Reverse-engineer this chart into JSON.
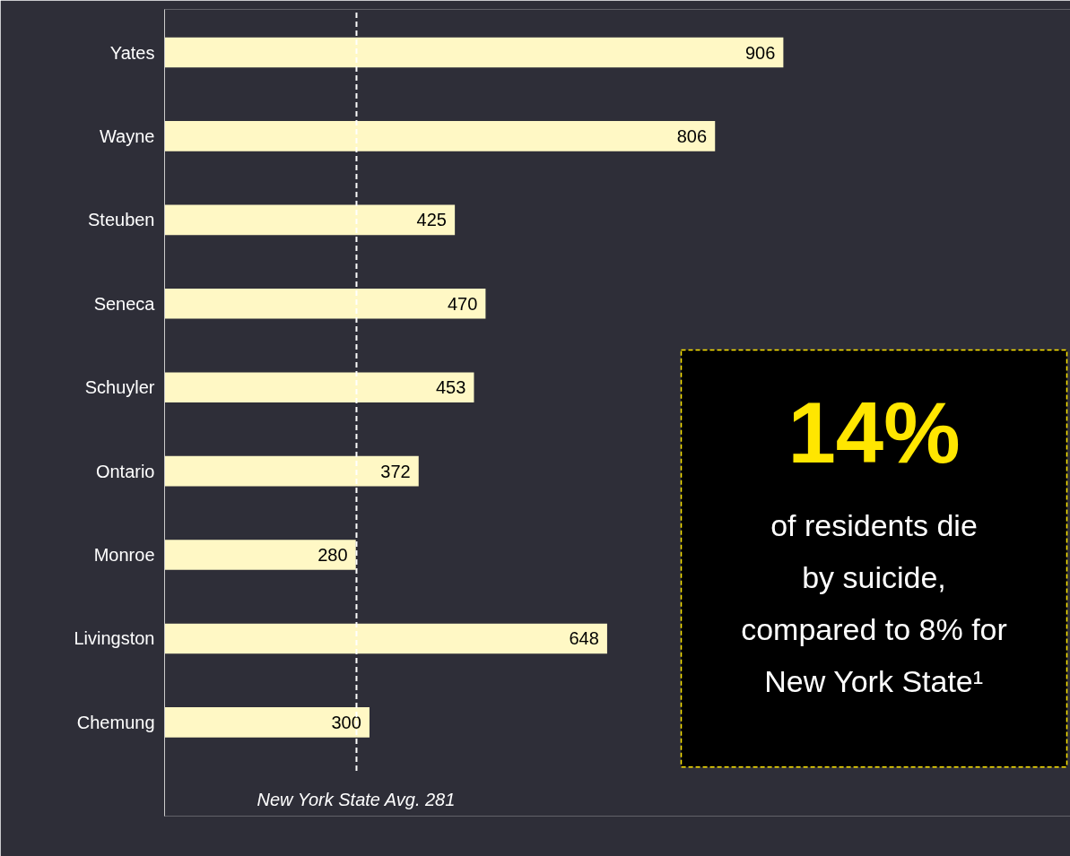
{
  "chart_data": [
    {
      "type": "bar",
      "orientation": "horizontal",
      "categories": [
        "Yates",
        "Wayne",
        "Steuben",
        "Seneca",
        "Schuyler",
        "Ontario",
        "Monroe",
        "Livingston",
        "Chemung"
      ],
      "values": [
        906,
        806,
        425,
        470,
        453,
        372,
        280,
        648,
        300
      ],
      "color": "#fff8c5",
      "data_labels": true,
      "grid": false,
      "ref_lines": [
        {
          "axis": "x",
          "value": 281,
          "label": "New York State Avg. 281",
          "color": "#ffffff",
          "line_style": "dashed"
        }
      ]
    },
    {
      "type": "other",
      "annotations": [
        "14%",
        "of residents die by suicide, compared to 8% for New York State¹"
      ],
      "colors": [
        "#ffe600",
        "#ffffff"
      ]
    }
  ]
}
